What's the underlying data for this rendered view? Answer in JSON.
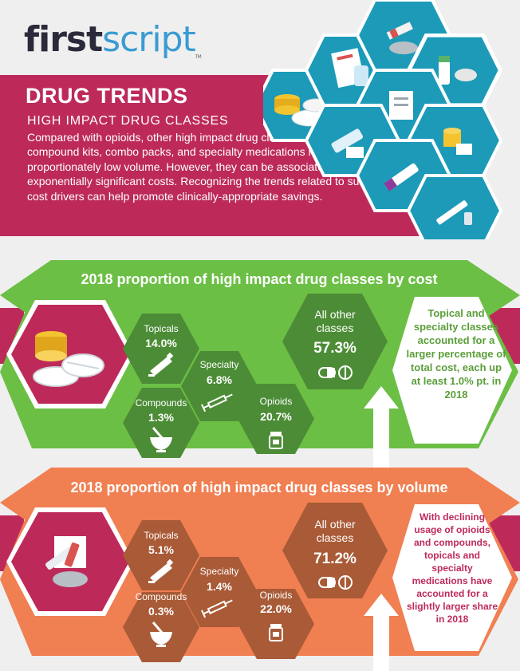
{
  "logo": {
    "first": "first",
    "script": "script",
    "tm": "TM"
  },
  "header": {
    "title": "DRUG TRENDS",
    "subtitle": "HIGH IMPACT DRUG CLASSES",
    "intro": "Compared with opioids, other high impact drug classes like topicals, compound kits, combo packs, and specialty medications represent proportionately low volume. However, they can be associated with exponentially significant costs. Recognizing the trends related to such cost drivers can help promote clinically-appropriate savings."
  },
  "colors": {
    "magenta": "#bd2a5a",
    "green_light": "#6cbf45",
    "green_dark": "#4c8c36",
    "orange_light": "#f07f52",
    "orange_dark": "#a95a36",
    "teal": "#1c9ab8",
    "background": "#efeff0"
  },
  "cost_section": {
    "heading": "2018 proportion of high impact drug classes by cost",
    "classes": {
      "topicals": {
        "name": "Topicals",
        "value": "14.0%"
      },
      "specialty": {
        "name": "Specialty",
        "value": "6.8%"
      },
      "compounds": {
        "name": "Compounds",
        "value": "1.3%"
      },
      "opioids": {
        "name": "Opioids",
        "value": "20.7%"
      },
      "other": {
        "name_line1": "All other",
        "name_line2": "classes",
        "value": "57.3%"
      }
    },
    "note": "Topical and specialty classes accounted for a larger percentage of total cost, each up at least 1.0% pt. in 2018"
  },
  "volume_section": {
    "heading": "2018 proportion of high impact drug classes by volume",
    "classes": {
      "topicals": {
        "name": "Topicals",
        "value": "5.1%"
      },
      "specialty": {
        "name": "Specialty",
        "value": "1.4%"
      },
      "compounds": {
        "name": "Compounds",
        "value": "0.3%"
      },
      "opioids": {
        "name": "Opioids",
        "value": "22.0%"
      },
      "other": {
        "name_line1": "All other",
        "name_line2": "classes",
        "value": "71.2%"
      }
    },
    "note": "With declining usage of opioids and compounds, topicals and specialty medications have accounted for a slightly larger share in 2018"
  },
  "icons": {
    "hero_cost": "coins-and-pills-icon",
    "hero_volume": "syringe-and-mortar-icon",
    "topicals": "ointment-tube-icon",
    "specialty": "syringe-icon",
    "compounds": "mortar-pestle-icon",
    "opioids": "pill-bottle-icon",
    "other": "capsule-tablet-icon",
    "arrow": "up-arrow-icon"
  }
}
